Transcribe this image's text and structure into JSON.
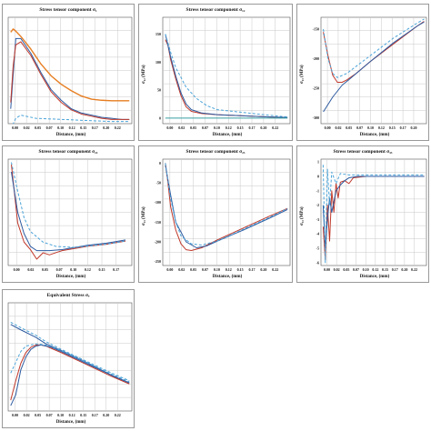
{
  "colors": {
    "grid": "#c8c8c8",
    "orange": "#e67e22",
    "red": "#c0392b",
    "blue": "#2c5aa0",
    "dashed": "#4aa3d8",
    "teal": "#3a9da0"
  },
  "chart_data": [
    {
      "id": "p1",
      "type": "line",
      "title": "Stress tensor component σ₁",
      "xlabel": "Distance, (mm)",
      "ylabel": "",
      "xticks": [
        "0.00",
        "0.02",
        "0.05",
        "0.07",
        "0.10",
        "0.12",
        "0.15",
        "0.17",
        "0.20",
        "0.22"
      ],
      "yticks": [],
      "xlim": [
        -0.005,
        0.24
      ],
      "ylim": [
        0,
        100
      ],
      "series": [
        {
          "style": "orange",
          "x": [
            0.0,
            0.005,
            0.01,
            0.02,
            0.04,
            0.06,
            0.08,
            0.1,
            0.12,
            0.14,
            0.16,
            0.18,
            0.2,
            0.22,
            0.235
          ],
          "y": [
            86,
            89,
            87,
            82,
            70,
            56,
            45,
            37,
            31,
            26,
            23,
            22,
            21.5,
            21.5,
            21.5
          ]
        },
        {
          "style": "blue",
          "x": [
            0.0,
            0.01,
            0.02,
            0.04,
            0.06,
            0.08,
            0.1,
            0.12,
            0.14,
            0.16,
            0.18,
            0.2,
            0.22,
            0.235
          ],
          "y": [
            14,
            80,
            80,
            66,
            48,
            32,
            22,
            14,
            10,
            8,
            6,
            5,
            4,
            4
          ]
        },
        {
          "style": "red",
          "x": [
            0.0,
            0.005,
            0.01,
            0.02,
            0.04,
            0.06,
            0.08,
            0.1,
            0.12,
            0.14,
            0.16,
            0.18,
            0.2,
            0.22,
            0.235
          ],
          "y": [
            20,
            55,
            74,
            77,
            64,
            46,
            30,
            20,
            13,
            9,
            7,
            5,
            4,
            4,
            4
          ]
        },
        {
          "style": "dashed",
          "x": [
            0.0,
            0.01,
            0.02,
            0.05,
            0.1,
            0.15,
            0.2,
            0.235
          ],
          "y": [
            -5,
            5,
            8,
            5,
            4,
            3,
            2,
            2
          ]
        }
      ]
    },
    {
      "id": "p2",
      "type": "line",
      "title": "Stress tensor component σ₁₂",
      "xlabel": "Distance, (mm)",
      "ylabel": "σ₁₂ (MPa)",
      "xticks": [
        "0.00",
        "0.02",
        "0.05",
        "0.07",
        "0.10",
        "0.12",
        "0.15",
        "0.17",
        "0.20",
        "0.22"
      ],
      "yticks": [
        "150",
        "100",
        "50",
        "0"
      ],
      "xlim": [
        -0.005,
        0.24
      ],
      "ylim": [
        -10,
        180
      ],
      "series": [
        {
          "style": "red",
          "x": [
            0.0,
            0.005,
            0.01,
            0.02,
            0.03,
            0.04,
            0.05,
            0.07,
            0.1,
            0.15,
            0.2,
            0.235
          ],
          "y": [
            140,
            130,
            105,
            70,
            40,
            20,
            12,
            8,
            6,
            4,
            2,
            1
          ]
        },
        {
          "style": "blue",
          "x": [
            0.0,
            0.01,
            0.02,
            0.03,
            0.04,
            0.05,
            0.07,
            0.1,
            0.15,
            0.2,
            0.235
          ],
          "y": [
            150,
            110,
            75,
            45,
            25,
            15,
            9,
            6,
            4,
            2,
            1
          ]
        },
        {
          "style": "dashed",
          "x": [
            0.0,
            0.01,
            0.02,
            0.04,
            0.06,
            0.08,
            0.1,
            0.15,
            0.2,
            0.235
          ],
          "y": [
            150,
            118,
            90,
            55,
            35,
            22,
            15,
            10,
            5,
            2
          ]
        },
        {
          "style": "teal",
          "x": [
            0.0,
            0.05,
            0.1,
            0.15,
            0.2,
            0.235
          ],
          "y": [
            0,
            0,
            0,
            0,
            0,
            0
          ]
        }
      ]
    },
    {
      "id": "p3",
      "type": "line",
      "title": "",
      "xlabel": "Distance, (mm)",
      "ylabel": "σ₁₃ (MPa)",
      "xticks": [
        "0.00",
        "0.02",
        "0.05",
        "0.07",
        "0.10",
        "0.12",
        "0.15",
        "0.17",
        "0.20"
      ],
      "yticks": [
        "-150",
        "-200",
        "-250",
        "-300"
      ],
      "xlim": [
        -0.005,
        0.22
      ],
      "ylim": [
        -310,
        -130
      ],
      "series": [
        {
          "style": "red",
          "x": [
            0.0,
            0.01,
            0.02,
            0.03,
            0.04,
            0.05,
            0.07,
            0.1,
            0.15,
            0.2,
            0.215
          ],
          "y": [
            -155,
            -195,
            -228,
            -240,
            -240,
            -236,
            -225,
            -205,
            -175,
            -145,
            -137
          ]
        },
        {
          "style": "blue",
          "x": [
            0.0,
            0.02,
            0.04,
            0.06,
            0.1,
            0.15,
            0.2,
            0.215
          ],
          "y": [
            -290,
            -265,
            -245,
            -232,
            -205,
            -173,
            -145,
            -138
          ]
        },
        {
          "style": "dashed",
          "x": [
            0.0,
            0.01,
            0.02,
            0.03,
            0.05,
            0.1,
            0.15,
            0.2,
            0.215
          ],
          "y": [
            -150,
            -200,
            -225,
            -232,
            -225,
            -195,
            -165,
            -140,
            -133
          ]
        }
      ]
    },
    {
      "id": "p4",
      "type": "line",
      "title": "Stress tensor component σ₂₂",
      "xlabel": "Distance, (mm)",
      "ylabel": "",
      "xticks": [
        "0.00",
        "0.02",
        "0.05",
        "0.07",
        "0.10",
        "0.12",
        "0.15",
        "0.17"
      ],
      "yticks": [],
      "xlim": [
        -0.005,
        0.19
      ],
      "ylim": [
        0,
        100
      ],
      "series": [
        {
          "style": "red",
          "x": [
            0.0,
            0.01,
            0.02,
            0.03,
            0.04,
            0.05,
            0.06,
            0.07,
            0.08,
            0.1,
            0.12,
            0.15,
            0.18
          ],
          "y": [
            95,
            40,
            22,
            15,
            6,
            12,
            10,
            12,
            14,
            16,
            18,
            20,
            23
          ]
        },
        {
          "style": "blue",
          "x": [
            0.0,
            0.01,
            0.02,
            0.03,
            0.04,
            0.06,
            0.08,
            0.1,
            0.12,
            0.15,
            0.18
          ],
          "y": [
            88,
            50,
            30,
            18,
            14,
            14,
            15,
            17,
            19,
            21,
            24
          ]
        },
        {
          "style": "dashed",
          "x": [
            0.0,
            0.01,
            0.02,
            0.03,
            0.05,
            0.07,
            0.1,
            0.15,
            0.18
          ],
          "y": [
            97,
            70,
            45,
            32,
            22,
            18,
            17,
            20,
            23
          ]
        }
      ]
    },
    {
      "id": "p5",
      "type": "line",
      "title": "Stress tensor component σ₂₃",
      "xlabel": "Distance, (mm)",
      "ylabel": "σ₂₃ (MPa)",
      "xticks": [
        "0.00",
        "0.02",
        "0.05",
        "0.07",
        "0.10",
        "0.12",
        "0.15",
        "0.17",
        "0.20",
        "0.22"
      ],
      "yticks": [
        "0",
        "-50",
        "-100",
        "-150",
        "-200",
        "-250"
      ],
      "xlim": [
        -0.005,
        0.24
      ],
      "ylim": [
        -260,
        10
      ],
      "series": [
        {
          "style": "red",
          "x": [
            0.0,
            0.005,
            0.01,
            0.02,
            0.03,
            0.04,
            0.05,
            0.07,
            0.1,
            0.15,
            0.2,
            0.235
          ],
          "y": [
            0,
            -50,
            -110,
            -170,
            -205,
            -220,
            -222,
            -215,
            -195,
            -165,
            -135,
            -115
          ]
        },
        {
          "style": "blue",
          "x": [
            0.0,
            0.01,
            0.02,
            0.04,
            0.06,
            0.08,
            0.1,
            0.15,
            0.2,
            0.235
          ],
          "y": [
            -5,
            -80,
            -150,
            -200,
            -215,
            -210,
            -198,
            -170,
            -140,
            -118
          ]
        },
        {
          "style": "dashed",
          "x": [
            0.0,
            0.01,
            0.02,
            0.03,
            0.05,
            0.07,
            0.1,
            0.15,
            0.2,
            0.235
          ],
          "y": [
            0,
            -90,
            -150,
            -185,
            -205,
            -208,
            -198,
            -168,
            -138,
            -115
          ]
        }
      ]
    },
    {
      "id": "p6",
      "type": "line",
      "title": "Stress tensor component σ₃₃",
      "xlabel": "Distance, (mm)",
      "ylabel": "σ₃₃ (MPa)",
      "xticks": [
        "0.00",
        "0.02",
        "0.05",
        "0.07",
        "0.10",
        "0.12",
        "0.15",
        "0.17",
        "0.20",
        "0.22"
      ],
      "yticks": [
        "1",
        "0",
        "-1",
        "-2",
        "-3",
        "-4",
        "-5",
        "-6"
      ],
      "xlim": [
        -0.005,
        0.24
      ],
      "ylim": [
        -6.2,
        1.2
      ],
      "series": [
        {
          "style": "red",
          "x": [
            0.0,
            0.005,
            0.01,
            0.015,
            0.02,
            0.025,
            0.03,
            0.035,
            0.04,
            0.05,
            0.06,
            0.07,
            0.1,
            0.15,
            0.2,
            0.235
          ],
          "y": [
            -3.5,
            -5.8,
            -2.0,
            -4.5,
            -1.0,
            -2.5,
            -0.5,
            -1.5,
            -0.4,
            -0.3,
            -0.5,
            -0.1,
            0,
            0,
            0,
            0
          ]
        },
        {
          "style": "blue",
          "x": [
            0.0,
            0.005,
            0.01,
            0.015,
            0.02,
            0.03,
            0.04,
            0.05,
            0.06,
            0.08,
            0.1,
            0.15,
            0.2,
            0.235
          ],
          "y": [
            -2.0,
            -5.0,
            -3.0,
            -1.5,
            -2.5,
            -1.0,
            -0.6,
            -0.3,
            -0.1,
            0,
            0,
            0,
            0,
            0
          ]
        },
        {
          "style": "dashed",
          "x": [
            0.0,
            0.005,
            0.01,
            0.015,
            0.02,
            0.03,
            0.04,
            0.06,
            0.08,
            0.1,
            0.15,
            0.2,
            0.235
          ],
          "y": [
            0.8,
            -6.0,
            0.5,
            -2.0,
            0.3,
            -0.5,
            0.2,
            0.1,
            0.1,
            0.1,
            0.1,
            0.1,
            0.1
          ]
        }
      ]
    },
    {
      "id": "p7",
      "type": "line",
      "title": "Equivalent Stress σₑ",
      "xlabel": "Distance, (mm)",
      "ylabel": "",
      "xticks": [
        "0.00",
        "0.02",
        "0.05",
        "0.07",
        "0.10",
        "0.12",
        "0.15",
        "0.17",
        "0.20",
        "0.22"
      ],
      "yticks": [],
      "xlim": [
        -0.005,
        0.24
      ],
      "ylim": [
        0,
        100
      ],
      "series": [
        {
          "style": "blue",
          "x": [
            0.0,
            0.02,
            0.05,
            0.07,
            0.1,
            0.15,
            0.2,
            0.235
          ],
          "y": [
            80,
            75,
            68,
            62,
            56,
            45,
            33,
            26
          ]
        },
        {
          "style": "dashed",
          "x": [
            0.0,
            0.02,
            0.05,
            0.07,
            0.1,
            0.15,
            0.2,
            0.235
          ],
          "y": [
            82,
            77,
            70,
            64,
            57,
            46,
            35,
            28
          ]
        },
        {
          "style": "red",
          "x": [
            0.0,
            0.01,
            0.02,
            0.03,
            0.04,
            0.05,
            0.06,
            0.07,
            0.08,
            0.1,
            0.15,
            0.2,
            0.235
          ],
          "y": [
            10,
            28,
            44,
            54,
            59,
            61,
            61,
            60,
            58,
            54,
            43,
            32,
            25
          ]
        },
        {
          "style": "blue2",
          "x": [
            0.0,
            0.01,
            0.02,
            0.03,
            0.04,
            0.05,
            0.06,
            0.08,
            0.1,
            0.15,
            0.2,
            0.235
          ],
          "y": [
            5,
            15,
            38,
            50,
            57,
            60,
            61,
            59,
            55,
            44,
            33,
            26
          ]
        },
        {
          "style": "dashed2",
          "x": [
            0.0,
            0.01,
            0.02,
            0.03,
            0.05,
            0.07,
            0.1,
            0.15,
            0.2,
            0.235
          ],
          "y": [
            35,
            45,
            55,
            60,
            62,
            61,
            56,
            45,
            34,
            27
          ]
        }
      ]
    }
  ]
}
